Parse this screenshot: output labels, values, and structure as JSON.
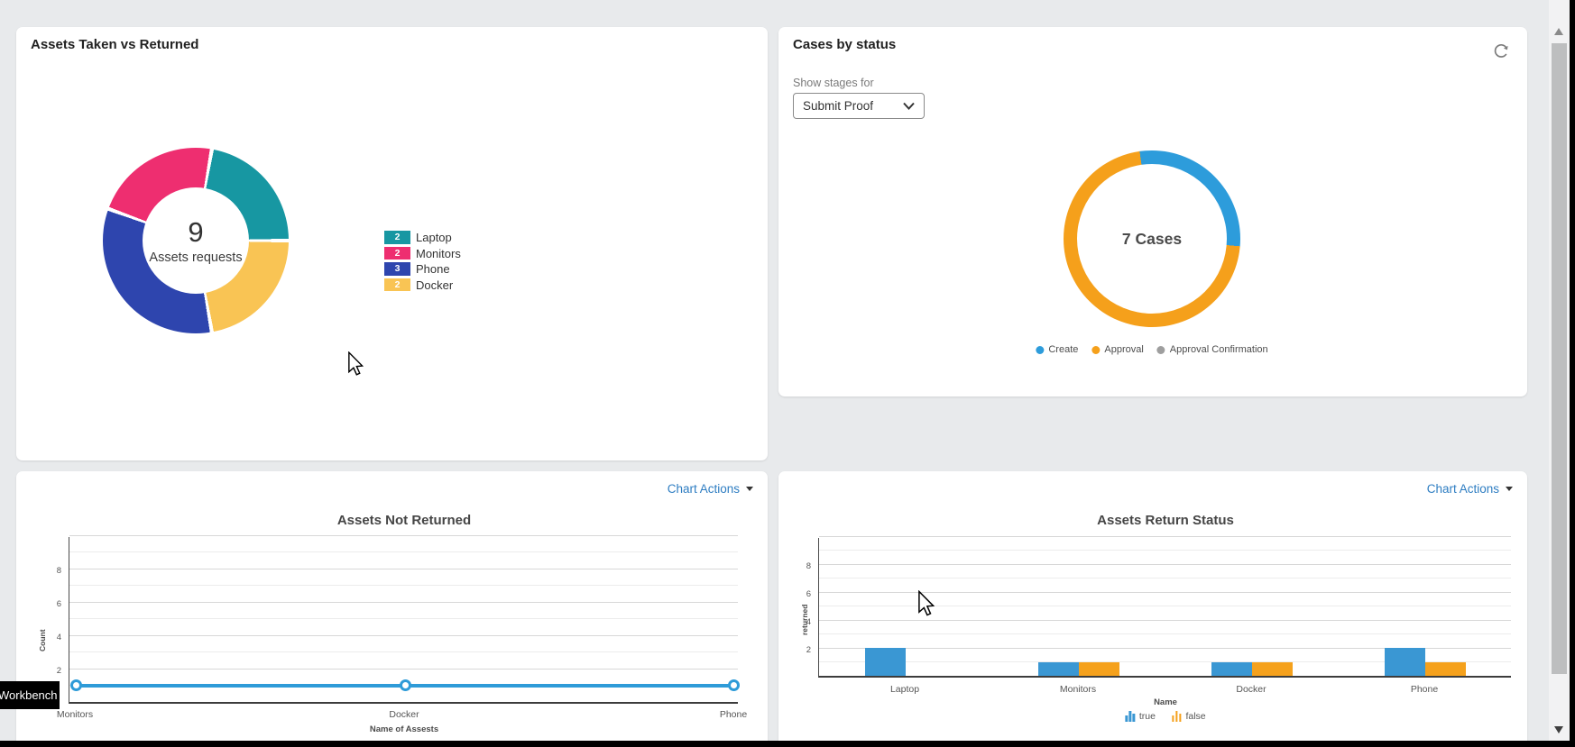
{
  "workbench_label": "Workbench",
  "panels": {
    "assets_taken": {
      "title": "Assets Taken vs Returned",
      "center_value": "9",
      "center_label": "Assets requests",
      "legend": [
        {
          "value": "2",
          "label": "Laptop",
          "color": "#1797A2"
        },
        {
          "value": "2",
          "label": "Monitors",
          "color": "#EE2E70"
        },
        {
          "value": "3",
          "label": "Phone",
          "color": "#2E45AE"
        },
        {
          "value": "2",
          "label": "Docker",
          "color": "#F9C454"
        }
      ],
      "slice_order_clockwise": [
        0,
        3,
        2,
        1
      ],
      "start_angle_deg": 10
    },
    "cases_by_status": {
      "title": "Cases by status",
      "filter_label": "Show stages for",
      "filter_value": "Submit Proof",
      "center_label": "7 Cases",
      "legend": [
        {
          "label": "Create",
          "color": "#2D9CDB",
          "value": 2
        },
        {
          "label": "Approval",
          "color": "#F5A01B",
          "value": 5
        },
        {
          "label": "Approval Confirmation",
          "color": "#9E9E9E",
          "value": 0
        }
      ],
      "start_angle_deg": 352
    },
    "assets_not_returned": {
      "chart_actions_label": "Chart Actions",
      "title": "Assets Not Returned",
      "ylabel": "Count",
      "xlabel": "Name of Assests",
      "yticks": [
        2,
        4,
        6,
        8
      ],
      "line_color": "#2E9BD8"
    },
    "assets_return_status": {
      "chart_actions_label": "Chart Actions",
      "title": "Assets Return Status",
      "ylabel": "returned",
      "xlabel": "Name",
      "yticks": [
        2,
        4,
        6,
        8
      ],
      "legend": [
        {
          "label": "true",
          "color": "#3A97D3"
        },
        {
          "label": "false",
          "color": "#F5A11C"
        }
      ]
    }
  },
  "chart_data": [
    {
      "type": "pie",
      "title": "Assets Taken vs Returned",
      "categories": [
        "Laptop",
        "Monitors",
        "Phone",
        "Docker"
      ],
      "values": [
        2,
        2,
        3,
        2
      ],
      "total": 9,
      "center_text": "9 Assets requests",
      "legend_position": "right"
    },
    {
      "type": "pie",
      "title": "Cases by status",
      "categories": [
        "Create",
        "Approval",
        "Approval Confirmation"
      ],
      "values": [
        2,
        5,
        0
      ],
      "total": 7,
      "center_text": "7 Cases",
      "legend_position": "bottom"
    },
    {
      "type": "line",
      "title": "Assets Not Returned",
      "x": [
        "Monitors",
        "Docker",
        "Phone"
      ],
      "y": [
        1,
        1,
        1
      ],
      "xlabel": "Name of Assests",
      "ylabel": "Count",
      "ylim": [
        0,
        10
      ],
      "grid": true
    },
    {
      "type": "bar",
      "title": "Assets Return Status",
      "categories": [
        "Laptop",
        "Monitors",
        "Docker",
        "Phone"
      ],
      "series": [
        {
          "name": "true",
          "values": [
            2,
            1,
            1,
            2
          ]
        },
        {
          "name": "false",
          "values": [
            0,
            1,
            1,
            1
          ]
        }
      ],
      "xlabel": "Name",
      "ylabel": "returned",
      "ylim": [
        0,
        10
      ],
      "grid": true,
      "legend_position": "bottom"
    }
  ]
}
